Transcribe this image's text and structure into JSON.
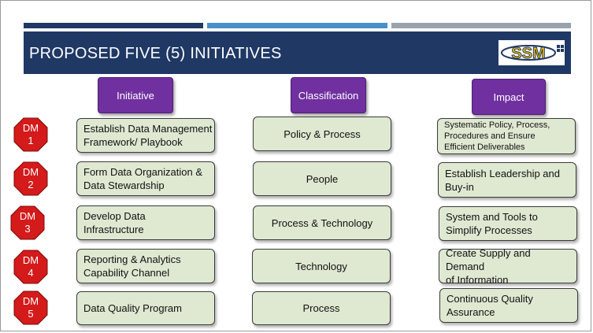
{
  "slide": {
    "title": "PROPOSED FIVE (5) INITIATIVES",
    "logo_text": "SSM",
    "colors": {
      "title_bar": "#1f3864",
      "header_box": "#7030a0",
      "dm_badge": "#d41a1a",
      "content_box": "#dfe9d2"
    }
  },
  "headers": {
    "initiative": "Initiative",
    "classification": "Classification",
    "impact": "Impact"
  },
  "rows": [
    {
      "dm_label": "DM",
      "dm_num": "1",
      "initiative": [
        "Establish Data Management",
        "Framework/ Playbook"
      ],
      "classification": "Policy & Process",
      "impact": [
        "Systematic Policy, Process,",
        "Procedures and Ensure",
        "Efficient Deliverables"
      ]
    },
    {
      "dm_label": "DM",
      "dm_num": "2",
      "initiative": [
        "Form Data Organization &",
        "Data Stewardship"
      ],
      "classification": "People",
      "impact": [
        "Establish Leadership and",
        "Buy-in"
      ]
    },
    {
      "dm_label": "DM",
      "dm_num": "3",
      "initiative": [
        "Develop Data",
        "Infrastructure"
      ],
      "classification": "Process & Technology",
      "impact": [
        "System and Tools to",
        "Simplify Processes"
      ]
    },
    {
      "dm_label": "DM",
      "dm_num": "4",
      "initiative": [
        "Reporting & Analytics",
        "Capability Channel"
      ],
      "classification": "Technology",
      "impact": [
        "Create Supply and Demand",
        "of Information"
      ]
    },
    {
      "dm_label": "DM",
      "dm_num": "5",
      "initiative": [
        "Data Quality Program"
      ],
      "classification": "Process",
      "impact": [
        "Continuous Quality",
        "Assurance"
      ]
    }
  ]
}
